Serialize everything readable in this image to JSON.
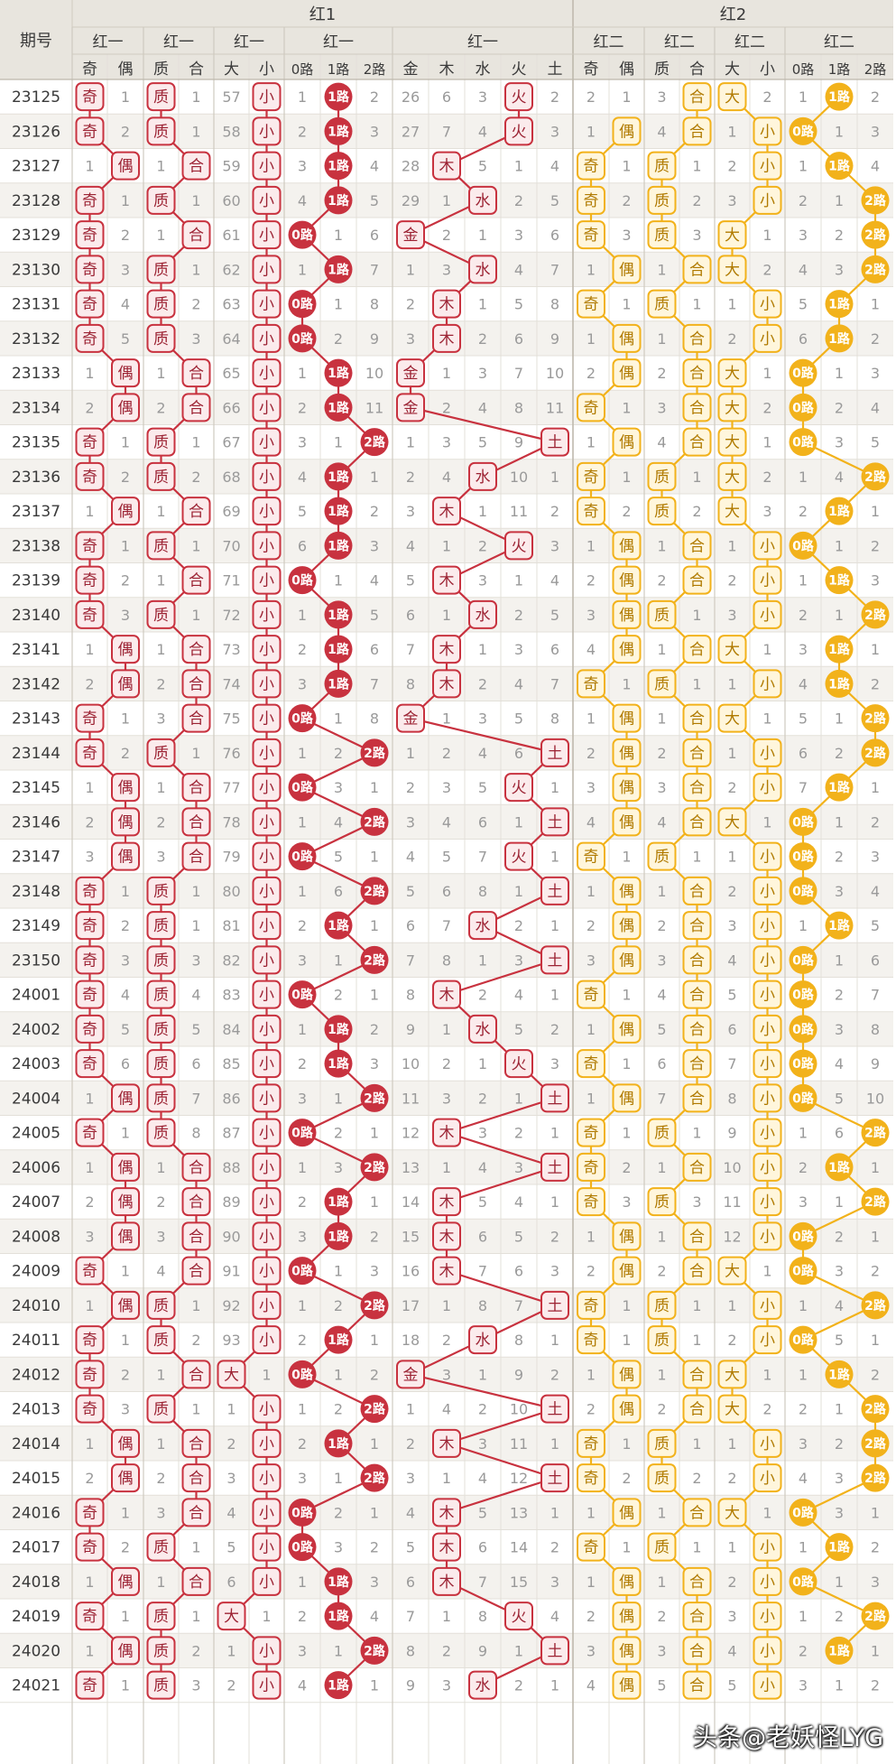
{
  "chart_data": {
    "type": "table",
    "title": "",
    "colors": {
      "red": "#C8323F",
      "red_text": "#9C2233",
      "yellow": "#F2B21B",
      "yellow_text": "#B07A00",
      "header_bg": "#E8E5DE",
      "header_text": "#3A3A3A",
      "row_alt_bg": "#F4F2EE",
      "plain_text": "#9A9A9A"
    },
    "header": {
      "period_label": "期号",
      "group_titles": [
        "红1",
        "红2"
      ],
      "subgroup_titles": [
        "红一",
        "红一",
        "红一",
        "红一",
        "红一",
        "红二",
        "红二",
        "红二",
        "红二"
      ],
      "column_labels": [
        "奇",
        "偶",
        "质",
        "合",
        "大",
        "小",
        "0路",
        "1路",
        "2路",
        "金",
        "木",
        "水",
        "火",
        "土",
        "奇",
        "偶",
        "质",
        "合",
        "大",
        "小",
        "0路",
        "1路",
        "2路"
      ]
    },
    "rows": [
      {
        "period": "23125",
        "cells": [
          0,
          1,
          0,
          1,
          57,
          0,
          1,
          0,
          2,
          26,
          6,
          3,
          0,
          2,
          2,
          1,
          3,
          0,
          0,
          2,
          1,
          0,
          2
        ]
      },
      {
        "period": "23126",
        "cells": [
          0,
          2,
          0,
          1,
          58,
          0,
          2,
          0,
          3,
          27,
          7,
          4,
          0,
          3,
          1,
          0,
          4,
          0,
          1,
          0,
          0,
          1,
          3
        ]
      },
      {
        "period": "23127",
        "cells": [
          1,
          0,
          1,
          0,
          59,
          0,
          3,
          0,
          4,
          28,
          0,
          5,
          1,
          4,
          0,
          1,
          0,
          1,
          2,
          0,
          1,
          0,
          4
        ]
      },
      {
        "period": "23128",
        "cells": [
          0,
          1,
          0,
          1,
          60,
          0,
          4,
          0,
          5,
          29,
          1,
          0,
          2,
          5,
          0,
          2,
          0,
          2,
          3,
          0,
          2,
          1,
          0
        ]
      },
      {
        "period": "23129",
        "cells": [
          0,
          2,
          1,
          0,
          61,
          0,
          0,
          1,
          6,
          0,
          2,
          1,
          3,
          6,
          0,
          3,
          0,
          3,
          0,
          1,
          3,
          2,
          0
        ]
      },
      {
        "period": "23130",
        "cells": [
          0,
          3,
          0,
          1,
          62,
          0,
          1,
          0,
          7,
          1,
          3,
          0,
          4,
          7,
          1,
          0,
          1,
          0,
          0,
          2,
          4,
          3,
          0
        ]
      },
      {
        "period": "23131",
        "cells": [
          0,
          4,
          0,
          2,
          63,
          0,
          0,
          1,
          8,
          2,
          0,
          1,
          5,
          8,
          0,
          1,
          0,
          1,
          1,
          0,
          5,
          0,
          1
        ]
      },
      {
        "period": "23132",
        "cells": [
          0,
          5,
          0,
          3,
          64,
          0,
          0,
          2,
          9,
          3,
          0,
          2,
          6,
          9,
          1,
          0,
          1,
          0,
          2,
          0,
          6,
          0,
          2
        ]
      },
      {
        "period": "23133",
        "cells": [
          1,
          0,
          1,
          0,
          65,
          0,
          1,
          0,
          10,
          0,
          1,
          3,
          7,
          10,
          2,
          0,
          2,
          0,
          0,
          1,
          0,
          1,
          3
        ]
      },
      {
        "period": "23134",
        "cells": [
          2,
          0,
          2,
          0,
          66,
          0,
          2,
          0,
          11,
          0,
          2,
          4,
          8,
          11,
          0,
          1,
          3,
          0,
          0,
          2,
          0,
          2,
          4
        ]
      },
      {
        "period": "23135",
        "cells": [
          0,
          1,
          0,
          1,
          67,
          0,
          3,
          1,
          0,
          1,
          3,
          5,
          9,
          0,
          1,
          0,
          4,
          0,
          0,
          1,
          0,
          3,
          5
        ]
      },
      {
        "period": "23136",
        "cells": [
          0,
          2,
          0,
          2,
          68,
          0,
          4,
          0,
          1,
          2,
          4,
          0,
          10,
          1,
          0,
          1,
          0,
          1,
          0,
          2,
          1,
          4,
          0
        ]
      },
      {
        "period": "23137",
        "cells": [
          1,
          0,
          1,
          0,
          69,
          0,
          5,
          0,
          2,
          3,
          0,
          1,
          11,
          2,
          0,
          2,
          0,
          2,
          0,
          3,
          2,
          0,
          1
        ]
      },
      {
        "period": "23138",
        "cells": [
          0,
          1,
          0,
          1,
          70,
          0,
          6,
          0,
          3,
          4,
          1,
          2,
          0,
          3,
          1,
          0,
          1,
          0,
          1,
          0,
          0,
          1,
          2
        ]
      },
      {
        "period": "23139",
        "cells": [
          0,
          2,
          1,
          0,
          71,
          0,
          0,
          1,
          4,
          5,
          0,
          3,
          1,
          4,
          2,
          0,
          2,
          0,
          2,
          0,
          1,
          0,
          3
        ]
      },
      {
        "period": "23140",
        "cells": [
          0,
          3,
          0,
          1,
          72,
          0,
          1,
          0,
          5,
          6,
          1,
          0,
          2,
          5,
          3,
          0,
          0,
          1,
          3,
          0,
          2,
          1,
          0
        ]
      },
      {
        "period": "23141",
        "cells": [
          1,
          0,
          1,
          0,
          73,
          0,
          2,
          0,
          6,
          7,
          0,
          1,
          3,
          6,
          4,
          0,
          1,
          0,
          0,
          1,
          3,
          0,
          1
        ]
      },
      {
        "period": "23142",
        "cells": [
          2,
          0,
          2,
          0,
          74,
          0,
          3,
          0,
          7,
          8,
          0,
          2,
          4,
          7,
          0,
          1,
          0,
          1,
          1,
          0,
          4,
          0,
          2
        ]
      },
      {
        "period": "23143",
        "cells": [
          0,
          1,
          3,
          0,
          75,
          0,
          0,
          1,
          8,
          0,
          1,
          3,
          5,
          8,
          1,
          0,
          1,
          0,
          0,
          1,
          5,
          1,
          0
        ]
      },
      {
        "period": "23144",
        "cells": [
          0,
          2,
          0,
          1,
          76,
          0,
          1,
          2,
          0,
          1,
          2,
          4,
          6,
          0,
          2,
          0,
          2,
          0,
          1,
          0,
          6,
          2,
          0
        ]
      },
      {
        "period": "23145",
        "cells": [
          1,
          0,
          1,
          0,
          77,
          0,
          0,
          3,
          1,
          2,
          3,
          5,
          0,
          1,
          3,
          0,
          3,
          0,
          2,
          0,
          7,
          0,
          1
        ]
      },
      {
        "period": "23146",
        "cells": [
          2,
          0,
          2,
          0,
          78,
          0,
          1,
          4,
          0,
          3,
          4,
          6,
          1,
          0,
          4,
          0,
          4,
          0,
          0,
          1,
          0,
          1,
          2
        ]
      },
      {
        "period": "23147",
        "cells": [
          3,
          0,
          3,
          0,
          79,
          0,
          0,
          5,
          1,
          4,
          5,
          7,
          0,
          1,
          0,
          1,
          0,
          1,
          1,
          0,
          0,
          2,
          3
        ]
      },
      {
        "period": "23148",
        "cells": [
          0,
          1,
          0,
          1,
          80,
          0,
          1,
          6,
          0,
          5,
          6,
          8,
          1,
          0,
          1,
          0,
          1,
          0,
          2,
          0,
          0,
          3,
          4
        ]
      },
      {
        "period": "23149",
        "cells": [
          0,
          2,
          0,
          1,
          81,
          0,
          2,
          0,
          1,
          6,
          7,
          0,
          2,
          1,
          2,
          0,
          2,
          0,
          3,
          0,
          1,
          0,
          5
        ]
      },
      {
        "period": "23150",
        "cells": [
          0,
          3,
          0,
          3,
          82,
          0,
          3,
          1,
          0,
          7,
          8,
          1,
          3,
          0,
          3,
          0,
          3,
          0,
          4,
          0,
          0,
          1,
          6
        ]
      },
      {
        "period": "24001",
        "cells": [
          0,
          4,
          0,
          4,
          83,
          0,
          0,
          2,
          1,
          8,
          0,
          2,
          4,
          1,
          0,
          1,
          4,
          0,
          5,
          0,
          0,
          2,
          7
        ]
      },
      {
        "period": "24002",
        "cells": [
          0,
          5,
          0,
          5,
          84,
          0,
          1,
          0,
          2,
          9,
          1,
          0,
          5,
          2,
          1,
          0,
          5,
          0,
          6,
          0,
          0,
          3,
          8
        ]
      },
      {
        "period": "24003",
        "cells": [
          0,
          6,
          0,
          6,
          85,
          0,
          2,
          0,
          3,
          10,
          2,
          1,
          0,
          3,
          0,
          1,
          6,
          0,
          7,
          0,
          0,
          4,
          9
        ]
      },
      {
        "period": "24004",
        "cells": [
          1,
          0,
          0,
          7,
          86,
          0,
          3,
          1,
          0,
          11,
          3,
          2,
          1,
          0,
          1,
          0,
          7,
          0,
          8,
          0,
          0,
          5,
          10
        ]
      },
      {
        "period": "24005",
        "cells": [
          0,
          1,
          0,
          8,
          87,
          0,
          0,
          2,
          1,
          12,
          0,
          3,
          2,
          1,
          0,
          1,
          0,
          1,
          9,
          0,
          1,
          6,
          0
        ]
      },
      {
        "period": "24006",
        "cells": [
          1,
          0,
          1,
          0,
          88,
          0,
          1,
          3,
          0,
          13,
          1,
          4,
          3,
          0,
          0,
          2,
          1,
          0,
          10,
          0,
          2,
          0,
          1
        ]
      },
      {
        "period": "24007",
        "cells": [
          2,
          0,
          2,
          0,
          89,
          0,
          2,
          0,
          1,
          14,
          0,
          5,
          4,
          1,
          0,
          3,
          0,
          3,
          11,
          0,
          3,
          1,
          0
        ]
      },
      {
        "period": "24008",
        "cells": [
          3,
          0,
          3,
          0,
          90,
          0,
          3,
          0,
          2,
          15,
          0,
          6,
          5,
          2,
          1,
          0,
          1,
          0,
          12,
          0,
          0,
          2,
          1
        ]
      },
      {
        "period": "24009",
        "cells": [
          0,
          1,
          4,
          0,
          91,
          0,
          0,
          1,
          3,
          16,
          0,
          7,
          6,
          3,
          2,
          0,
          2,
          0,
          0,
          1,
          0,
          3,
          2
        ]
      },
      {
        "period": "24010",
        "cells": [
          1,
          0,
          0,
          1,
          92,
          0,
          1,
          2,
          0,
          17,
          1,
          8,
          7,
          0,
          0,
          1,
          0,
          1,
          1,
          0,
          1,
          4,
          0
        ]
      },
      {
        "period": "24011",
        "cells": [
          0,
          1,
          0,
          2,
          93,
          0,
          2,
          0,
          1,
          18,
          2,
          0,
          8,
          1,
          0,
          1,
          0,
          1,
          2,
          0,
          0,
          5,
          1
        ]
      },
      {
        "period": "24012",
        "cells": [
          0,
          2,
          1,
          0,
          0,
          1,
          0,
          1,
          2,
          0,
          3,
          1,
          9,
          2,
          1,
          0,
          1,
          0,
          0,
          1,
          1,
          0,
          2
        ]
      },
      {
        "period": "24013",
        "cells": [
          0,
          3,
          0,
          1,
          1,
          0,
          1,
          2,
          0,
          1,
          4,
          2,
          10,
          0,
          2,
          0,
          2,
          0,
          0,
          2,
          2,
          1,
          0
        ]
      },
      {
        "period": "24014",
        "cells": [
          1,
          0,
          1,
          0,
          2,
          0,
          2,
          0,
          1,
          2,
          0,
          3,
          11,
          1,
          0,
          1,
          0,
          1,
          1,
          0,
          3,
          2,
          0
        ]
      },
      {
        "period": "24015",
        "cells": [
          2,
          0,
          2,
          0,
          3,
          0,
          3,
          1,
          0,
          3,
          1,
          4,
          12,
          0,
          0,
          2,
          0,
          2,
          2,
          0,
          4,
          3,
          0
        ]
      },
      {
        "period": "24016",
        "cells": [
          0,
          1,
          3,
          0,
          4,
          0,
          0,
          2,
          1,
          4,
          0,
          5,
          13,
          1,
          1,
          0,
          1,
          0,
          0,
          1,
          0,
          3,
          1
        ]
      },
      {
        "period": "24017",
        "cells": [
          0,
          2,
          0,
          1,
          5,
          0,
          0,
          3,
          2,
          5,
          0,
          6,
          14,
          2,
          0,
          1,
          0,
          1,
          1,
          0,
          1,
          0,
          2
        ]
      },
      {
        "period": "24018",
        "cells": [
          1,
          0,
          1,
          0,
          6,
          0,
          1,
          0,
          3,
          6,
          0,
          7,
          15,
          3,
          1,
          0,
          1,
          0,
          2,
          0,
          0,
          1,
          3
        ]
      },
      {
        "period": "24019",
        "cells": [
          0,
          1,
          0,
          1,
          0,
          1,
          2,
          0,
          4,
          7,
          1,
          8,
          0,
          4,
          2,
          0,
          2,
          0,
          3,
          0,
          1,
          2,
          0
        ]
      },
      {
        "period": "24020",
        "cells": [
          1,
          0,
          0,
          2,
          1,
          0,
          3,
          1,
          0,
          8,
          2,
          9,
          1,
          0,
          3,
          0,
          3,
          0,
          4,
          0,
          2,
          0,
          1
        ]
      },
      {
        "period": "24021",
        "cells": [
          0,
          1,
          0,
          3,
          2,
          0,
          4,
          0,
          1,
          9,
          3,
          0,
          2,
          1,
          4,
          0,
          5,
          0,
          5,
          0,
          3,
          1,
          2
        ]
      }
    ]
  },
  "watermark": "头条@老妖怪LYG"
}
